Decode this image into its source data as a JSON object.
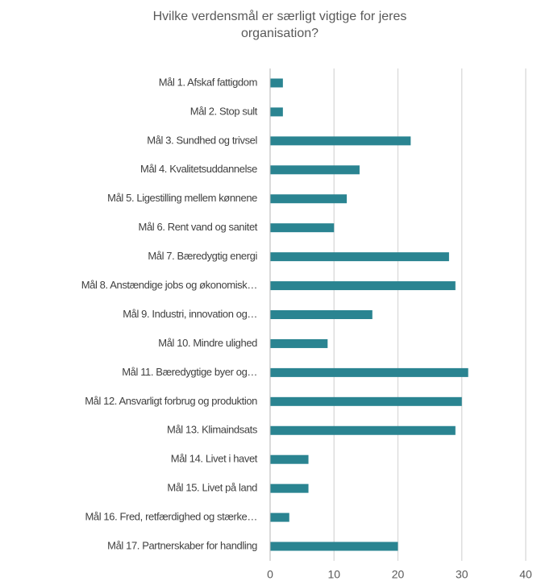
{
  "chart_data": {
    "type": "barh",
    "title": "Hvilke verdensmål er særligt vigtige for jeres organisation?",
    "categories": [
      "Mål 1. Afskaf fattigdom",
      "Mål 2. Stop sult",
      "Mål 3. Sundhed og trivsel",
      "Mål 4. Kvalitetsuddannelse",
      "Mål 5. Ligestilling mellem kønnene",
      "Mål 6. Rent vand og sanitet",
      "Mål 7. Bæredygtig energi",
      "Mål 8. Anstændige jobs og økonomisk…",
      "Mål 9. Industri, innovation og…",
      "Mål 10. Mindre ulighed",
      "Mål 11. Bæredygtige byer og…",
      "Mål 12. Ansvarligt forbrug og produktion",
      "Mål 13. Klimaindsats",
      "Mål 14. Livet i havet",
      "Mål 15. Livet på land",
      "Mål 16. Fred, retfærdighed og stærke…",
      "Mål 17. Partnerskaber for handling"
    ],
    "values": [
      2,
      2,
      22,
      14,
      12,
      10,
      28,
      29,
      16,
      9,
      31,
      30,
      29,
      6,
      6,
      3,
      20
    ],
    "color": "#2a8491",
    "xlim": [
      0,
      40
    ],
    "xticks": [
      0,
      10,
      20,
      30,
      40
    ],
    "grid": true
  }
}
